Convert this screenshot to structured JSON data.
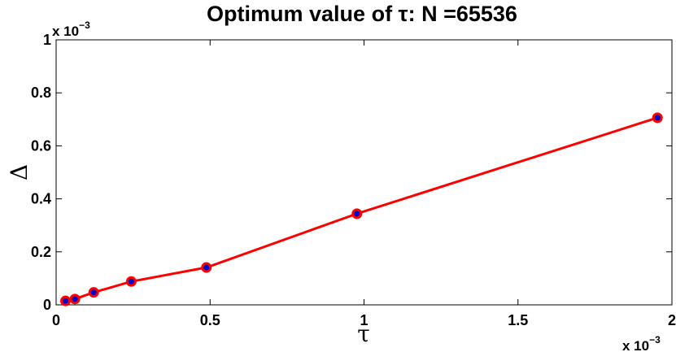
{
  "chart_data": {
    "type": "line",
    "title": "Optimum value of τ: N =65536",
    "xlabel": "τ",
    "ylabel": "Δ",
    "x_multiplier": "x 10",
    "x_multiplier_exp": "−3",
    "y_multiplier": "x 10",
    "y_multiplier_exp": "−3",
    "xlim": [
      0,
      2
    ],
    "ylim": [
      0,
      1
    ],
    "x_ticks": [
      0,
      0.5,
      1,
      1.5,
      2
    ],
    "x_tick_labels": [
      "0",
      "0.5",
      "1",
      "1.5",
      "2"
    ],
    "y_ticks": [
      0,
      0.2,
      0.4,
      0.6,
      0.8,
      1
    ],
    "y_tick_labels": [
      "0",
      "0.2",
      "0.4",
      "0.6",
      "0.8",
      "1"
    ],
    "grid": false,
    "series": [
      {
        "x": [
          0.0305,
          0.061,
          0.122,
          0.244,
          0.488,
          0.977,
          1.953
        ],
        "y": [
          0.015,
          0.022,
          0.047,
          0.088,
          0.141,
          0.344,
          0.706
        ],
        "line_color": "#ff0000",
        "marker_edge_color": "#ff0000",
        "marker_face_color": "#0000cc"
      }
    ]
  }
}
